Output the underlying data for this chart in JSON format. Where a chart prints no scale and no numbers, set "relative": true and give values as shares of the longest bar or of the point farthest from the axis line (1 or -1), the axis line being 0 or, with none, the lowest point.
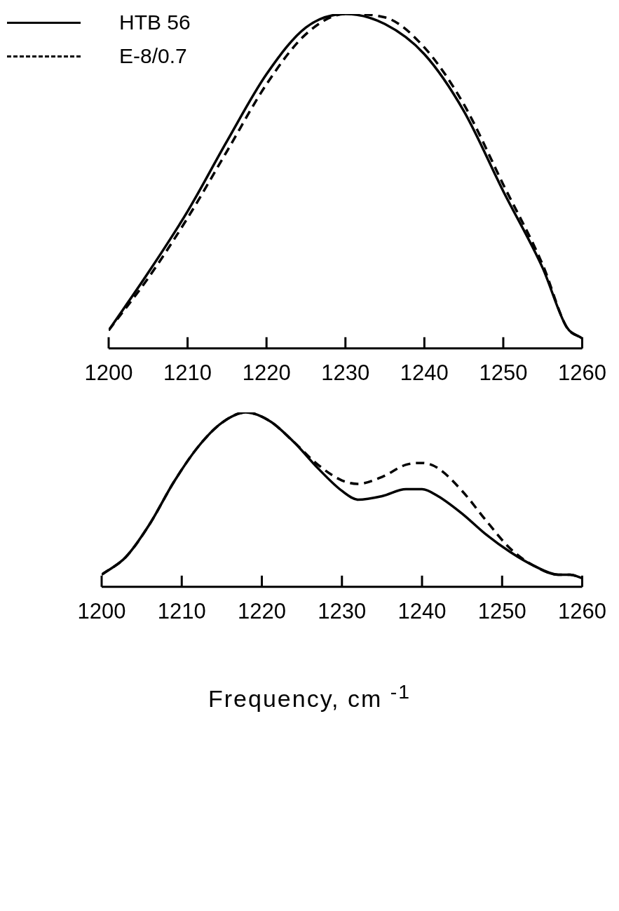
{
  "chart_data": [
    {
      "type": "line",
      "relative": true,
      "xlim": [
        1200,
        1260
      ],
      "xticks": [
        1200,
        1210,
        1220,
        1230,
        1240,
        1250,
        1260
      ],
      "legend": "top left",
      "grid": false,
      "x": [
        1200,
        1205,
        1210,
        1215,
        1220,
        1225,
        1230,
        1235,
        1240,
        1245,
        1250,
        1255,
        1258,
        1260
      ],
      "series": [
        {
          "name": "HTB 56",
          "color": "#000000",
          "line_style": "solid",
          "values": [
            0.054,
            0.226,
            0.41,
            0.62,
            0.82,
            0.96,
            1.0,
            0.97,
            0.88,
            0.71,
            0.47,
            0.24,
            0.065,
            0.03
          ]
        },
        {
          "name": "E-8/0.7",
          "color": "#000000",
          "line_style": "dashed",
          "values": [
            0.054,
            0.21,
            0.39,
            0.59,
            0.79,
            0.94,
            1.0,
            0.99,
            0.9,
            0.73,
            0.49,
            0.25,
            0.065,
            0.03
          ]
        }
      ]
    },
    {
      "type": "line",
      "relative": true,
      "xlim": [
        1200,
        1260
      ],
      "xticks": [
        1200,
        1210,
        1220,
        1230,
        1240,
        1250,
        1260
      ],
      "xlabel": "Frequency, cm $^{-1}$",
      "grid": false,
      "x": [
        1200,
        1203,
        1206,
        1209,
        1212,
        1215,
        1218,
        1221,
        1224,
        1227,
        1230,
        1232,
        1235,
        1238,
        1240,
        1242,
        1245,
        1248,
        1251,
        1254,
        1257,
        1258.5,
        1260
      ],
      "series": [
        {
          "color": "#000000",
          "line_style": "solid",
          "values": [
            0.07,
            0.17,
            0.36,
            0.6,
            0.8,
            0.94,
            1.0,
            0.95,
            0.83,
            0.68,
            0.55,
            0.5,
            0.52,
            0.56,
            0.56,
            0.52,
            0.42,
            0.3,
            0.2,
            0.12,
            0.07,
            0.07,
            0.05
          ]
        },
        {
          "color": "#000000",
          "line_style": "dashed",
          "values": [
            0.07,
            0.17,
            0.36,
            0.6,
            0.8,
            0.94,
            1.0,
            0.95,
            0.83,
            0.7,
            0.61,
            0.59,
            0.63,
            0.7,
            0.71,
            0.68,
            0.55,
            0.38,
            0.22,
            0.12,
            0.07,
            0.07,
            0.05
          ]
        }
      ]
    }
  ]
}
